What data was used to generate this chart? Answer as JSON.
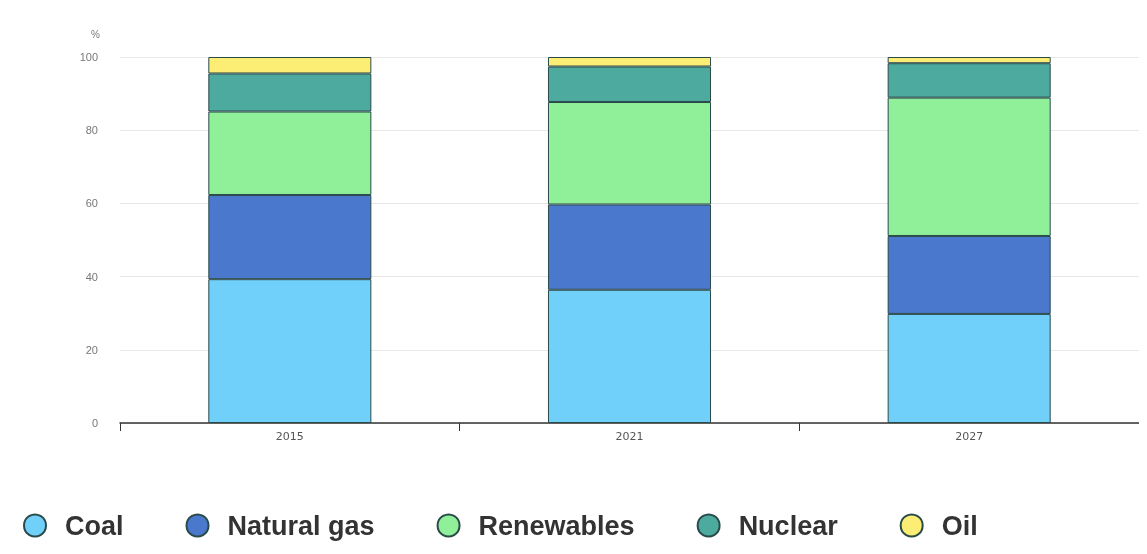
{
  "chart_data": {
    "type": "bar",
    "stacked": true,
    "ylabel": "%",
    "categories": [
      "2015",
      "2021",
      "2027"
    ],
    "series": [
      {
        "name": "Coal",
        "color": "#70d0fa",
        "values": [
          39.3,
          36.4,
          29.8
        ]
      },
      {
        "name": "Natural gas",
        "color": "#4a78cc",
        "values": [
          23.0,
          23.3,
          21.3
        ]
      },
      {
        "name": "Renewables",
        "color": "#90f09a",
        "values": [
          22.8,
          28.0,
          37.8
        ]
      },
      {
        "name": "Nuclear",
        "color": "#4caa9f",
        "values": [
          10.4,
          9.7,
          9.4
        ]
      },
      {
        "name": "Oil",
        "color": "#fcee74",
        "values": [
          4.5,
          2.6,
          1.7
        ]
      }
    ],
    "ylim": [
      0,
      100
    ],
    "yticks": [
      0,
      20,
      40,
      60,
      80,
      100
    ],
    "grid": "y",
    "legend": "bottom"
  }
}
